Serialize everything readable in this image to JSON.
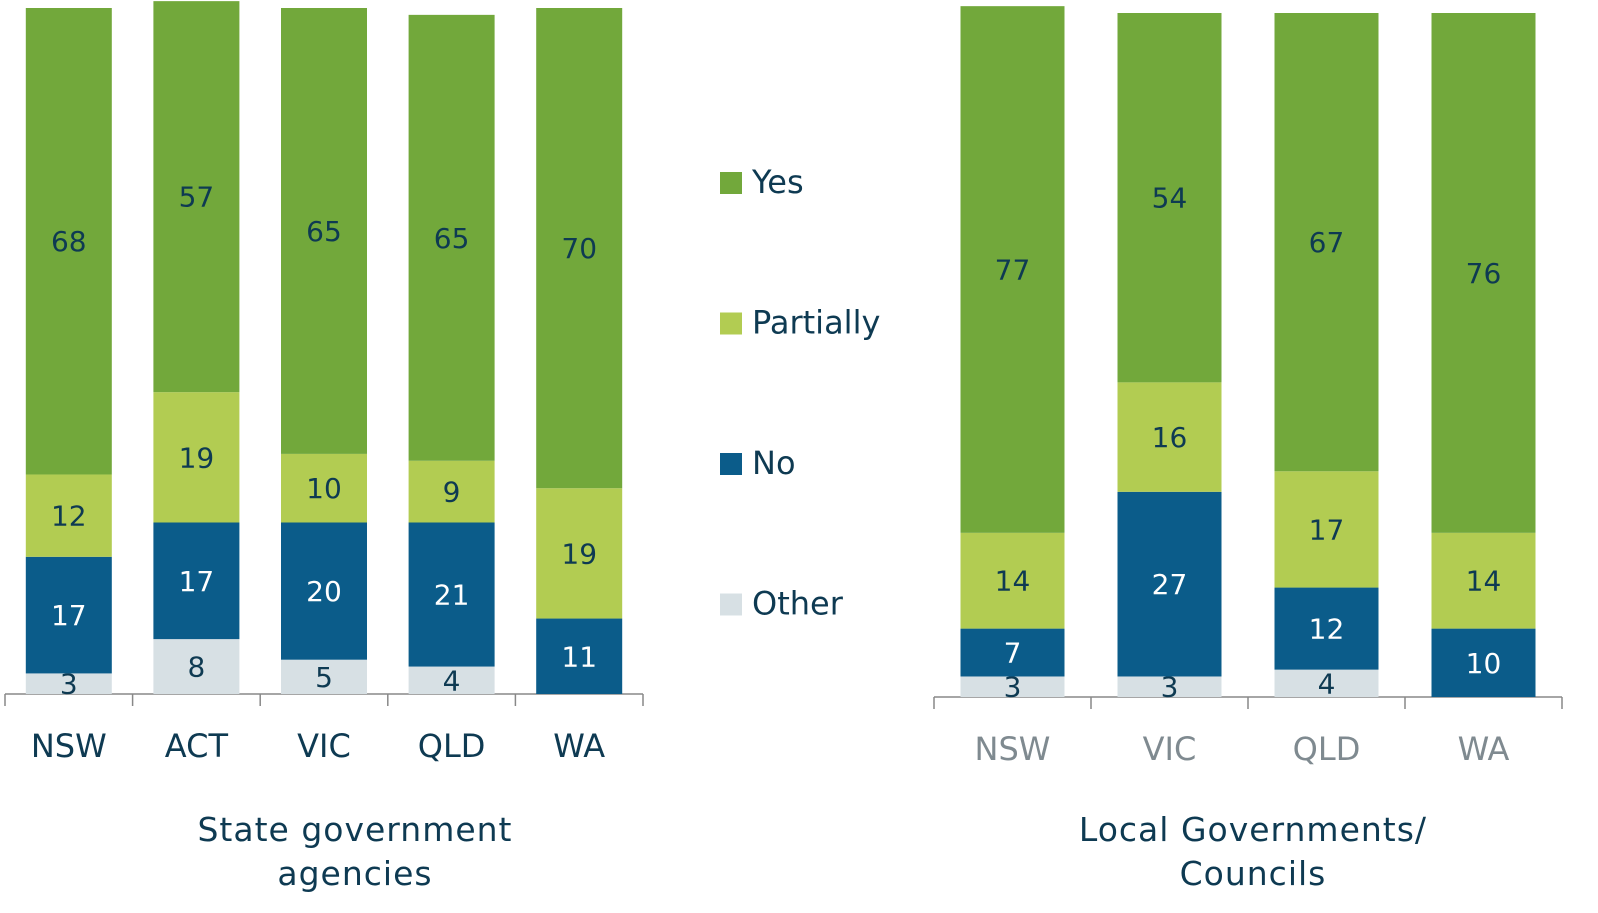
{
  "chart_data": [
    {
      "type": "stacked_bar",
      "x_label": "State government agencies",
      "categories": [
        "NSW",
        "ACT",
        "VIC",
        "QLD",
        "WA"
      ],
      "ylim": [
        0,
        100
      ],
      "series": [
        {
          "name": "Other",
          "color": "#d7e0e4",
          "values": [
            3,
            8,
            5,
            4,
            null
          ]
        },
        {
          "name": "No",
          "color": "#0b5c8a",
          "values": [
            17,
            17,
            20,
            21,
            11
          ]
        },
        {
          "name": "Partially",
          "color": "#b2cc52",
          "values": [
            12,
            19,
            10,
            9,
            19
          ]
        },
        {
          "name": "Yes",
          "color": "#72a83b",
          "values": [
            68,
            57,
            65,
            65,
            70
          ]
        }
      ]
    },
    {
      "type": "stacked_bar",
      "x_label": "Local Governments/ Councils",
      "categories": [
        "NSW",
        "VIC",
        "QLD",
        "WA"
      ],
      "ylim": [
        0,
        100
      ],
      "series": [
        {
          "color": "#d7e0e4",
          "values": [
            3,
            3,
            4,
            null
          ]
        },
        {
          "color": "#0b5c8a",
          "values": [
            7,
            27,
            12,
            10
          ]
        },
        {
          "color": "#b2cc52",
          "values": [
            14,
            16,
            17,
            14
          ]
        },
        {
          "color": "#72a83b",
          "values": [
            77,
            54,
            67,
            76
          ]
        }
      ]
    }
  ]
}
